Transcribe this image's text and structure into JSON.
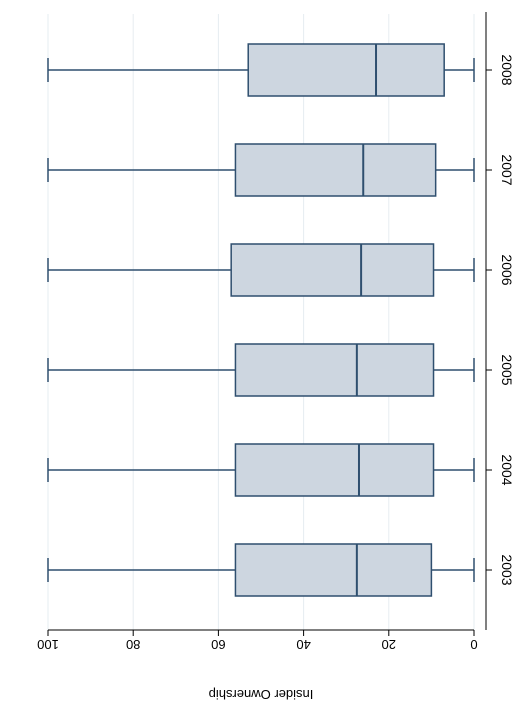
{
  "chart_data": {
    "type": "box",
    "orientation": "horizontal",
    "categories": [
      "2008",
      "2007",
      "2006",
      "2005",
      "2004",
      "2003"
    ],
    "boxes": [
      {
        "category": "2008",
        "min": 0,
        "q1": 7,
        "median": 23,
        "q3": 53,
        "max": 100
      },
      {
        "category": "2007",
        "min": 0,
        "q1": 9,
        "median": 26,
        "q3": 56,
        "max": 100
      },
      {
        "category": "2006",
        "min": 0,
        "q1": 9.5,
        "median": 26.5,
        "q3": 57,
        "max": 100
      },
      {
        "category": "2005",
        "min": 0,
        "q1": 9.5,
        "median": 27.5,
        "q3": 56,
        "max": 100
      },
      {
        "category": "2004",
        "min": 0,
        "q1": 9.5,
        "median": 27,
        "q3": 56,
        "max": 100
      },
      {
        "category": "2003",
        "min": 0,
        "q1": 10,
        "median": 27.5,
        "q3": 56,
        "max": 100
      }
    ],
    "x_ticks": [
      100,
      80,
      60,
      40,
      20,
      0
    ],
    "x_axis_reversed": true,
    "text_rotated_180": true,
    "xlim": [
      0,
      100
    ],
    "xlabel": "Insider Ownership",
    "ylabel": "",
    "title": "",
    "grid": "vertical",
    "colors": {
      "box_fill": "#cdd6e0",
      "box_stroke": "#2f4f6f",
      "grid": "#e6ecf1",
      "axis": "#000000",
      "text": "#000000"
    }
  }
}
